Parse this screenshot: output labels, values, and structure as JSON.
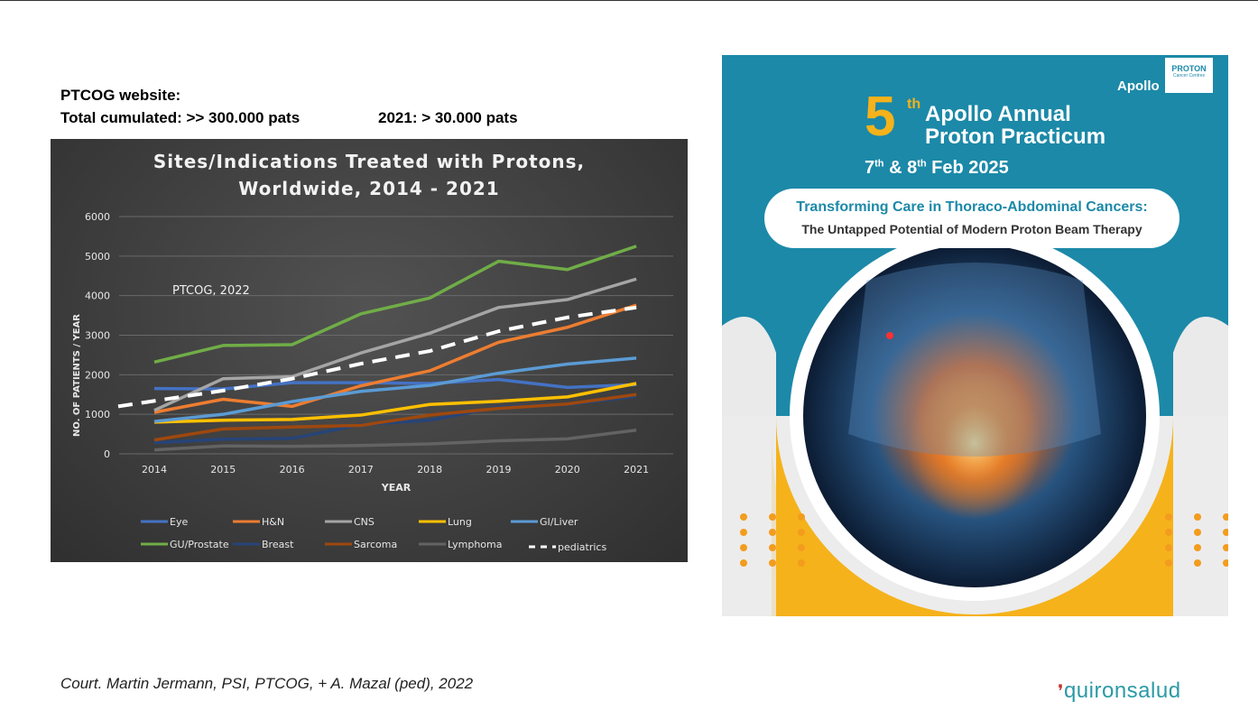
{
  "header": {
    "line1": "PTCOG website:",
    "line2a": "Total cumulated: >> 300.000 pats",
    "line2b": "2021:   > 30.000 pats"
  },
  "chart_data": {
    "type": "line",
    "title_line1": "Sites/Indications Treated with Protons,",
    "title_line2": "Worldwide, 2014 - 2021",
    "xlabel": "YEAR",
    "ylabel": "NO. OF PATIENTS / YEAR",
    "annotation": "PTCOG, 2022",
    "x": [
      "2014",
      "2015",
      "2016",
      "2017",
      "2018",
      "2019",
      "2020",
      "2021"
    ],
    "ylim": [
      0,
      6000
    ],
    "yticks": [
      "0",
      "1000",
      "2000",
      "3000",
      "4000",
      "5000",
      "6000"
    ],
    "grid": true,
    "legend_position": "bottom",
    "series": [
      {
        "name": "Eye",
        "color": "#4472c4",
        "values": [
          1650,
          1640,
          1800,
          1800,
          1780,
          1880,
          1680,
          1750
        ]
      },
      {
        "name": "H&N",
        "color": "#ed7d31",
        "values": [
          1050,
          1380,
          1200,
          1720,
          2100,
          2820,
          3200,
          3760
        ]
      },
      {
        "name": "CNS",
        "color": "#a5a5a5",
        "values": [
          1100,
          1900,
          1950,
          2550,
          3050,
          3700,
          3900,
          4420
        ]
      },
      {
        "name": "Lung",
        "color": "#ffc000",
        "values": [
          800,
          850,
          870,
          980,
          1250,
          1330,
          1440,
          1780
        ]
      },
      {
        "name": "GI/Liver",
        "color": "#5b9bd5",
        "values": [
          820,
          1000,
          1320,
          1580,
          1730,
          2040,
          2270,
          2420
        ]
      },
      {
        "name": "GU/Prostate",
        "color": "#70ad47",
        "values": [
          2320,
          2740,
          2760,
          3540,
          3940,
          4870,
          4660,
          5250
        ]
      },
      {
        "name": "Breast",
        "color": "#264478",
        "values": [
          280,
          370,
          390,
          740,
          850,
          1180,
          1250,
          1450
        ]
      },
      {
        "name": "Sarcoma",
        "color": "#9e480e",
        "values": [
          350,
          630,
          680,
          720,
          980,
          1150,
          1260,
          1500
        ]
      },
      {
        "name": "Lymphoma",
        "color": "#636363",
        "values": [
          100,
          200,
          190,
          210,
          250,
          330,
          380,
          600
        ]
      },
      {
        "name": "pediatrics",
        "color": "#ffffff",
        "dashed": true,
        "values": [
          1200,
          1600,
          1900,
          2280,
          2600,
          3100,
          3450,
          3700
        ]
      }
    ]
  },
  "poster": {
    "number": "5",
    "number_sup": "th",
    "title1": "Apollo Annual",
    "title2": "Proton Practicum",
    "date_a": "7",
    "date_a_sup": "th",
    "date_mid": " & 8",
    "date_b_sup": "th",
    "date_end": " Feb 2025",
    "banner_line1": "Transforming Care in Thoraco-Abdominal Cancers:",
    "banner_line2": "The Untapped Potential of Modern Proton Beam Therapy",
    "logo_apollo": "Apollo",
    "logo_proton_line1": "PROTON",
    "logo_proton_line2": "Cancer Centres",
    "colors": {
      "teal": "#1c89a8",
      "yellow": "#f5b21b",
      "orange": "#f39c1e"
    }
  },
  "footer": {
    "credit": "Court. Martin Jermann, PSI, PTCOG, + A. Mazal (ped), 2022",
    "brand": "quironsalud"
  }
}
